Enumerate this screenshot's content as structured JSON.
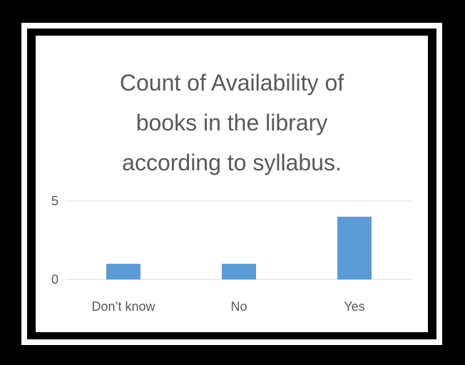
{
  "chart_data": {
    "type": "bar",
    "title_lines": [
      "Count of  Availability of",
      "books in the library",
      "according  to syllabus."
    ],
    "categories": [
      "Don’t know",
      "No",
      "Yes"
    ],
    "values": [
      1,
      1,
      4
    ],
    "yticks": [
      0,
      5
    ],
    "ylim": [
      0,
      5
    ],
    "xlabel": "",
    "ylabel": "",
    "grid": true,
    "legend": "none"
  },
  "colors": {
    "bar": "#5b9bd5",
    "grid": "#d9d9d9",
    "text": "#595959"
  }
}
